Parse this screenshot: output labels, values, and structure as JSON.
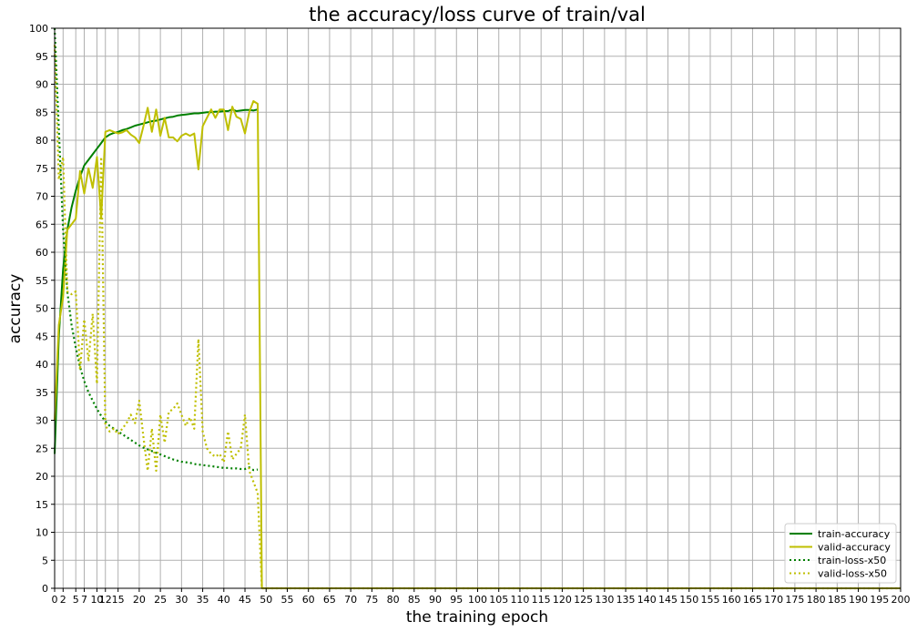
{
  "chart_data": {
    "type": "line",
    "title": "the accuracy/loss curve of train/val",
    "xlabel": "the training epoch",
    "ylabel": "accuracy",
    "xlim": [
      0,
      200
    ],
    "ylim": [
      0,
      100
    ],
    "xticks": [
      0,
      2,
      5,
      7,
      10,
      12,
      15,
      20,
      25,
      30,
      35,
      40,
      45,
      50,
      55,
      60,
      65,
      70,
      75,
      80,
      85,
      90,
      95,
      100,
      105,
      110,
      115,
      120,
      125,
      130,
      135,
      140,
      145,
      150,
      155,
      160,
      165,
      170,
      175,
      180,
      185,
      190,
      195,
      200
    ],
    "yticks": [
      0,
      5,
      10,
      15,
      20,
      25,
      30,
      35,
      40,
      45,
      50,
      55,
      60,
      65,
      70,
      75,
      80,
      85,
      90,
      95,
      100
    ],
    "grid": true,
    "legend_position": "lower-right",
    "series": [
      {
        "name": "train-accuracy",
        "color": "#008000",
        "style": "solid",
        "x": [
          0,
          1,
          2,
          3,
          4,
          5,
          6,
          7,
          8,
          9,
          10,
          11,
          12,
          13,
          14,
          15,
          16,
          17,
          18,
          19,
          20,
          21,
          22,
          23,
          24,
          25,
          26,
          27,
          28,
          29,
          30,
          31,
          32,
          33,
          34,
          35,
          36,
          37,
          38,
          39,
          40,
          41,
          42,
          43,
          44,
          45,
          46,
          47,
          48
        ],
        "y": [
          24,
          45,
          57,
          64,
          68,
          71,
          73.5,
          75.5,
          76.5,
          77.5,
          78.5,
          79.5,
          80.5,
          81,
          81.3,
          81.5,
          81.8,
          82,
          82.3,
          82.6,
          82.8,
          83,
          83.2,
          83.4,
          83.5,
          83.7,
          83.9,
          84.1,
          84.2,
          84.4,
          84.5,
          84.6,
          84.7,
          84.8,
          84.8,
          84.9,
          85,
          85,
          85.1,
          85.1,
          85.2,
          85.2,
          85.5,
          85.2,
          85.3,
          85.4,
          85.4,
          85.3,
          85.5
        ]
      },
      {
        "name": "valid-accuracy",
        "color": "#bfbf00",
        "style": "solid",
        "x": [
          0,
          1,
          2,
          3,
          4,
          5,
          6,
          7,
          8,
          9,
          10,
          11,
          12,
          13,
          14,
          15,
          16,
          17,
          18,
          19,
          20,
          21,
          22,
          23,
          24,
          25,
          26,
          27,
          28,
          29,
          30,
          31,
          32,
          33,
          34,
          35,
          36,
          37,
          38,
          39,
          40,
          41,
          42,
          43,
          44,
          45,
          46,
          47,
          48,
          49,
          50,
          200
        ],
        "y": [
          30,
          47,
          52,
          64,
          65,
          66,
          74.5,
          70.5,
          75,
          71.5,
          77,
          66,
          81.5,
          81.8,
          81.5,
          81.2,
          81.4,
          81.8,
          81,
          80.5,
          79.5,
          82.5,
          85.8,
          81.5,
          85.5,
          80.8,
          84,
          80.5,
          80.5,
          79.8,
          80.8,
          81.2,
          80.8,
          81.2,
          74.8,
          82.5,
          84,
          85.5,
          84,
          85.5,
          85.5,
          81.8,
          86,
          84.2,
          83.8,
          81.2,
          85,
          87,
          86.5,
          0,
          0,
          0
        ]
      },
      {
        "name": "train-loss-x50",
        "color": "#008000",
        "style": "dotted",
        "x": [
          0,
          1,
          2,
          3,
          4,
          5,
          6,
          7,
          8,
          9,
          10,
          11,
          12,
          13,
          14,
          15,
          16,
          17,
          18,
          19,
          20,
          21,
          22,
          23,
          24,
          25,
          26,
          27,
          28,
          29,
          30,
          31,
          32,
          33,
          34,
          35,
          36,
          37,
          38,
          39,
          40,
          41,
          42,
          43,
          44,
          45,
          46,
          47,
          48
        ],
        "y": [
          100,
          82,
          64,
          53,
          47,
          43,
          39.5,
          37,
          35,
          33.5,
          32,
          30.8,
          29.8,
          29,
          28.5,
          28,
          27.5,
          27,
          26.5,
          26,
          25.5,
          25.1,
          24.8,
          24.5,
          24.2,
          23.9,
          23.6,
          23.3,
          23,
          22.8,
          22.6,
          22.5,
          22.4,
          22.2,
          22.1,
          22,
          21.9,
          21.8,
          21.7,
          21.6,
          21.5,
          21.5,
          21.4,
          21.4,
          21.3,
          21.3,
          21.6,
          21.1,
          21.2
        ]
      },
      {
        "name": "valid-loss-x50",
        "color": "#bfbf00",
        "style": "dotted",
        "x": [
          0,
          1,
          2,
          3,
          4,
          5,
          6,
          7,
          8,
          9,
          10,
          11,
          12,
          13,
          14,
          15,
          16,
          17,
          18,
          19,
          20,
          21,
          22,
          23,
          24,
          25,
          26,
          27,
          28,
          29,
          30,
          31,
          32,
          33,
          34,
          35,
          36,
          37,
          38,
          39,
          40,
          41,
          42,
          43,
          44,
          45,
          46,
          47,
          48,
          49,
          50,
          200
        ],
        "y": [
          97,
          73,
          77,
          53,
          52.5,
          53,
          39,
          48,
          40.5,
          49,
          36.5,
          77,
          29,
          28,
          28.5,
          27.5,
          28.5,
          29.5,
          31,
          29.5,
          33.5,
          27,
          21,
          28.5,
          21,
          31,
          26,
          31.5,
          32,
          33,
          31,
          29,
          30.5,
          28.5,
          44.5,
          28,
          25,
          24,
          23.5,
          24,
          22.5,
          28,
          23,
          24,
          25,
          31,
          21,
          19,
          17,
          0,
          0,
          0
        ]
      }
    ]
  }
}
